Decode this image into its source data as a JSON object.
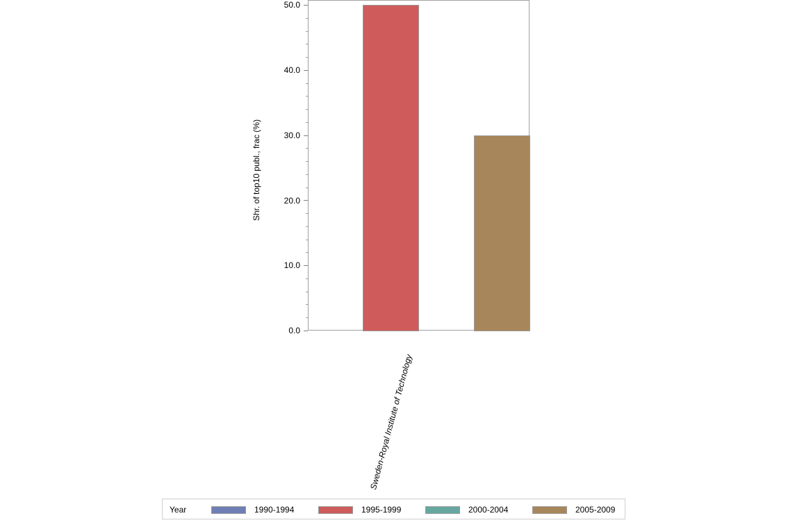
{
  "chart_data": {
    "type": "bar",
    "title": "",
    "xlabel": "",
    "ylabel": "Shr. of top10 publ., frac (%)",
    "ylim": [
      0,
      50
    ],
    "yticks": [
      "0.0",
      "10.0",
      "20.0",
      "30.0",
      "40.0",
      "50.0"
    ],
    "categories": [
      "Sweden-Royal Institute of Technology"
    ],
    "series": [
      {
        "name": "1990-1994",
        "color": "#6f7fb5",
        "values": [
          null
        ]
      },
      {
        "name": "1995-1999",
        "color": "#d05b5b",
        "values": [
          50.0
        ]
      },
      {
        "name": "2000-2004",
        "color": "#66a8a0",
        "values": [
          null
        ]
      },
      {
        "name": "2005-2009",
        "color": "#a8865b",
        "values": [
          30.0
        ]
      }
    ],
    "legend": {
      "title": "Year",
      "position": "bottom"
    },
    "grid": false
  },
  "axis": {
    "y_title": "Shr. of top10 publ., frac (%)",
    "y_ticks": [
      "0.0",
      "10.0",
      "20.0",
      "30.0",
      "40.0",
      "50.0"
    ],
    "x_category": "Sweden-Royal Institute of Technology"
  },
  "legend": {
    "title": "Year",
    "items": [
      {
        "label": "1990-1994",
        "color": "#6f7fb5"
      },
      {
        "label": "1995-1999",
        "color": "#d05b5b"
      },
      {
        "label": "2000-2004",
        "color": "#66a8a0"
      },
      {
        "label": "2005-2009",
        "color": "#a8865b"
      }
    ]
  }
}
